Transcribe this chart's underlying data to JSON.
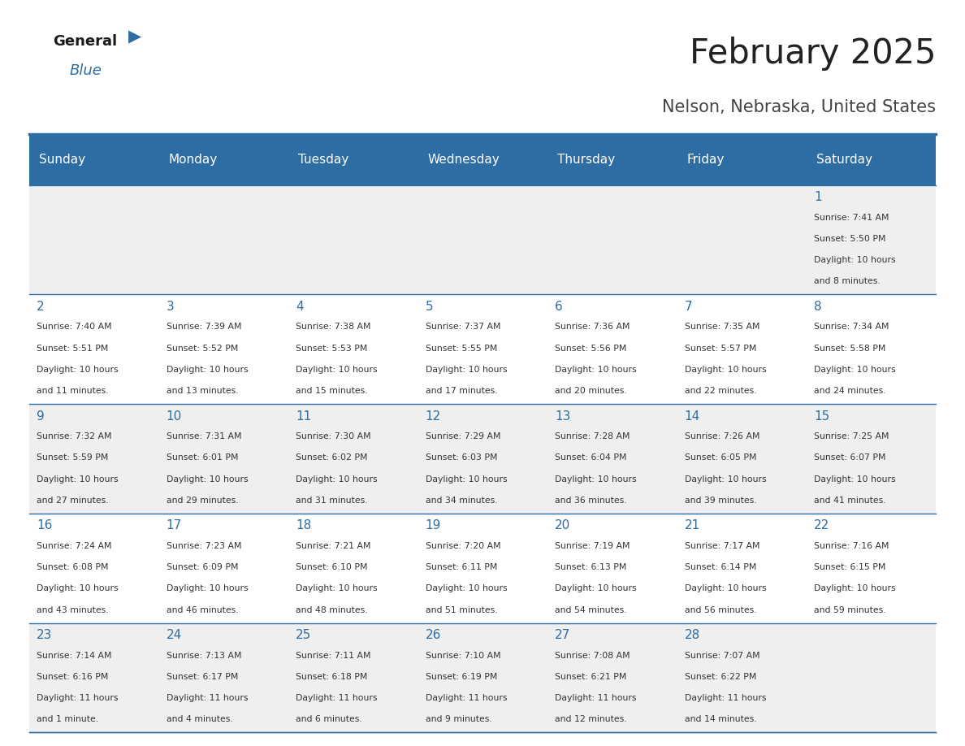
{
  "title": "February 2025",
  "subtitle": "Nelson, Nebraska, United States",
  "header_bg": "#2E6DA4",
  "header_text_color": "#FFFFFF",
  "cell_bg_light": "#EFEFEF",
  "cell_bg_white": "#FFFFFF",
  "border_color": "#2E6DA4",
  "day_names": [
    "Sunday",
    "Monday",
    "Tuesday",
    "Wednesday",
    "Thursday",
    "Friday",
    "Saturday"
  ],
  "title_color": "#222222",
  "subtitle_color": "#444444",
  "day_number_color": "#2E6DA4",
  "cell_text_color": "#333333",
  "calendar": [
    [
      null,
      null,
      null,
      null,
      null,
      null,
      {
        "day": 1,
        "lines": [
          "Sunrise: 7:41 AM",
          "Sunset: 5:50 PM",
          "Daylight: 10 hours",
          "and 8 minutes."
        ]
      }
    ],
    [
      {
        "day": 2,
        "lines": [
          "Sunrise: 7:40 AM",
          "Sunset: 5:51 PM",
          "Daylight: 10 hours",
          "and 11 minutes."
        ]
      },
      {
        "day": 3,
        "lines": [
          "Sunrise: 7:39 AM",
          "Sunset: 5:52 PM",
          "Daylight: 10 hours",
          "and 13 minutes."
        ]
      },
      {
        "day": 4,
        "lines": [
          "Sunrise: 7:38 AM",
          "Sunset: 5:53 PM",
          "Daylight: 10 hours",
          "and 15 minutes."
        ]
      },
      {
        "day": 5,
        "lines": [
          "Sunrise: 7:37 AM",
          "Sunset: 5:55 PM",
          "Daylight: 10 hours",
          "and 17 minutes."
        ]
      },
      {
        "day": 6,
        "lines": [
          "Sunrise: 7:36 AM",
          "Sunset: 5:56 PM",
          "Daylight: 10 hours",
          "and 20 minutes."
        ]
      },
      {
        "day": 7,
        "lines": [
          "Sunrise: 7:35 AM",
          "Sunset: 5:57 PM",
          "Daylight: 10 hours",
          "and 22 minutes."
        ]
      },
      {
        "day": 8,
        "lines": [
          "Sunrise: 7:34 AM",
          "Sunset: 5:58 PM",
          "Daylight: 10 hours",
          "and 24 minutes."
        ]
      }
    ],
    [
      {
        "day": 9,
        "lines": [
          "Sunrise: 7:32 AM",
          "Sunset: 5:59 PM",
          "Daylight: 10 hours",
          "and 27 minutes."
        ]
      },
      {
        "day": 10,
        "lines": [
          "Sunrise: 7:31 AM",
          "Sunset: 6:01 PM",
          "Daylight: 10 hours",
          "and 29 minutes."
        ]
      },
      {
        "day": 11,
        "lines": [
          "Sunrise: 7:30 AM",
          "Sunset: 6:02 PM",
          "Daylight: 10 hours",
          "and 31 minutes."
        ]
      },
      {
        "day": 12,
        "lines": [
          "Sunrise: 7:29 AM",
          "Sunset: 6:03 PM",
          "Daylight: 10 hours",
          "and 34 minutes."
        ]
      },
      {
        "day": 13,
        "lines": [
          "Sunrise: 7:28 AM",
          "Sunset: 6:04 PM",
          "Daylight: 10 hours",
          "and 36 minutes."
        ]
      },
      {
        "day": 14,
        "lines": [
          "Sunrise: 7:26 AM",
          "Sunset: 6:05 PM",
          "Daylight: 10 hours",
          "and 39 minutes."
        ]
      },
      {
        "day": 15,
        "lines": [
          "Sunrise: 7:25 AM",
          "Sunset: 6:07 PM",
          "Daylight: 10 hours",
          "and 41 minutes."
        ]
      }
    ],
    [
      {
        "day": 16,
        "lines": [
          "Sunrise: 7:24 AM",
          "Sunset: 6:08 PM",
          "Daylight: 10 hours",
          "and 43 minutes."
        ]
      },
      {
        "day": 17,
        "lines": [
          "Sunrise: 7:23 AM",
          "Sunset: 6:09 PM",
          "Daylight: 10 hours",
          "and 46 minutes."
        ]
      },
      {
        "day": 18,
        "lines": [
          "Sunrise: 7:21 AM",
          "Sunset: 6:10 PM",
          "Daylight: 10 hours",
          "and 48 minutes."
        ]
      },
      {
        "day": 19,
        "lines": [
          "Sunrise: 7:20 AM",
          "Sunset: 6:11 PM",
          "Daylight: 10 hours",
          "and 51 minutes."
        ]
      },
      {
        "day": 20,
        "lines": [
          "Sunrise: 7:19 AM",
          "Sunset: 6:13 PM",
          "Daylight: 10 hours",
          "and 54 minutes."
        ]
      },
      {
        "day": 21,
        "lines": [
          "Sunrise: 7:17 AM",
          "Sunset: 6:14 PM",
          "Daylight: 10 hours",
          "and 56 minutes."
        ]
      },
      {
        "day": 22,
        "lines": [
          "Sunrise: 7:16 AM",
          "Sunset: 6:15 PM",
          "Daylight: 10 hours",
          "and 59 minutes."
        ]
      }
    ],
    [
      {
        "day": 23,
        "lines": [
          "Sunrise: 7:14 AM",
          "Sunset: 6:16 PM",
          "Daylight: 11 hours",
          "and 1 minute."
        ]
      },
      {
        "day": 24,
        "lines": [
          "Sunrise: 7:13 AM",
          "Sunset: 6:17 PM",
          "Daylight: 11 hours",
          "and 4 minutes."
        ]
      },
      {
        "day": 25,
        "lines": [
          "Sunrise: 7:11 AM",
          "Sunset: 6:18 PM",
          "Daylight: 11 hours",
          "and 6 minutes."
        ]
      },
      {
        "day": 26,
        "lines": [
          "Sunrise: 7:10 AM",
          "Sunset: 6:19 PM",
          "Daylight: 11 hours",
          "and 9 minutes."
        ]
      },
      {
        "day": 27,
        "lines": [
          "Sunrise: 7:08 AM",
          "Sunset: 6:21 PM",
          "Daylight: 11 hours",
          "and 12 minutes."
        ]
      },
      {
        "day": 28,
        "lines": [
          "Sunrise: 7:07 AM",
          "Sunset: 6:22 PM",
          "Daylight: 11 hours",
          "and 14 minutes."
        ]
      },
      null
    ]
  ]
}
